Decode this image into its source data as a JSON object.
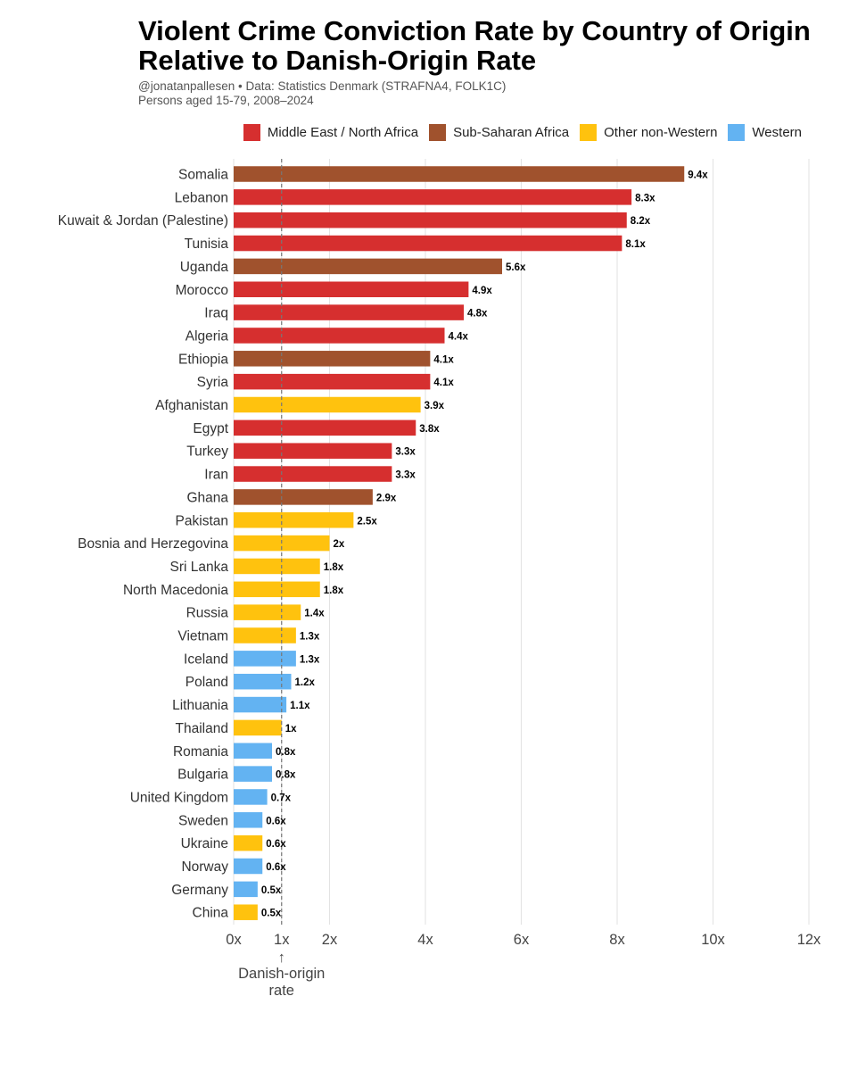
{
  "chart_data": {
    "type": "bar",
    "orientation": "horizontal",
    "title": "Violent Crime Conviction Rate by Country of Origin Relative to Danish-Origin Rate",
    "subtitle": [
      "@jonatanpallesen • Data: Statistics Denmark (STRAFNA4, FOLK1C)",
      "Persons aged 15-79, 2008–2024"
    ],
    "xlabel": "",
    "ylabel": "",
    "xlim": [
      0,
      12
    ],
    "x_ticks": [
      {
        "value": 0,
        "label": "0x"
      },
      {
        "value": 1,
        "label": "1x"
      },
      {
        "value": 2,
        "label": "2x"
      },
      {
        "value": 4,
        "label": "4x"
      },
      {
        "value": 6,
        "label": "6x"
      },
      {
        "value": 8,
        "label": "8x"
      },
      {
        "value": 10,
        "label": "10x"
      },
      {
        "value": 12,
        "label": "12x"
      }
    ],
    "grid": "vertical",
    "legend_position": "top-right",
    "legend": [
      {
        "key": "mena",
        "label": "Middle East / North Africa",
        "color": "#D62F2F"
      },
      {
        "key": "ssa",
        "label": "Sub-Saharan Africa",
        "color": "#A0522D"
      },
      {
        "key": "nonwest",
        "label": "Other non-Western",
        "color": "#FFC20E"
      },
      {
        "key": "west",
        "label": "Western",
        "color": "#63B3F2"
      }
    ],
    "reference_line": {
      "value": 1,
      "arrow": "↑",
      "annotation": [
        "Danish-origin",
        "rate"
      ]
    },
    "bars": [
      {
        "category": "Somalia",
        "value": 9.4,
        "label": "9.4x",
        "group": "ssa"
      },
      {
        "category": "Lebanon",
        "value": 8.3,
        "label": "8.3x",
        "group": "mena"
      },
      {
        "category": "Kuwait & Jordan (Palestine)",
        "value": 8.2,
        "label": "8.2x",
        "group": "mena"
      },
      {
        "category": "Tunisia",
        "value": 8.1,
        "label": "8.1x",
        "group": "mena"
      },
      {
        "category": "Uganda",
        "value": 5.6,
        "label": "5.6x",
        "group": "ssa"
      },
      {
        "category": "Morocco",
        "value": 4.9,
        "label": "4.9x",
        "group": "mena"
      },
      {
        "category": "Iraq",
        "value": 4.8,
        "label": "4.8x",
        "group": "mena"
      },
      {
        "category": "Algeria",
        "value": 4.4,
        "label": "4.4x",
        "group": "mena"
      },
      {
        "category": "Ethiopia",
        "value": 4.1,
        "label": "4.1x",
        "group": "ssa"
      },
      {
        "category": "Syria",
        "value": 4.1,
        "label": "4.1x",
        "group": "mena"
      },
      {
        "category": "Afghanistan",
        "value": 3.9,
        "label": "3.9x",
        "group": "nonwest"
      },
      {
        "category": "Egypt",
        "value": 3.8,
        "label": "3.8x",
        "group": "mena"
      },
      {
        "category": "Turkey",
        "value": 3.3,
        "label": "3.3x",
        "group": "mena"
      },
      {
        "category": "Iran",
        "value": 3.3,
        "label": "3.3x",
        "group": "mena"
      },
      {
        "category": "Ghana",
        "value": 2.9,
        "label": "2.9x",
        "group": "ssa"
      },
      {
        "category": "Pakistan",
        "value": 2.5,
        "label": "2.5x",
        "group": "nonwest"
      },
      {
        "category": "Bosnia and Herzegovina",
        "value": 2.0,
        "label": "2x",
        "group": "nonwest"
      },
      {
        "category": "Sri Lanka",
        "value": 1.8,
        "label": "1.8x",
        "group": "nonwest"
      },
      {
        "category": "North Macedonia",
        "value": 1.8,
        "label": "1.8x",
        "group": "nonwest"
      },
      {
        "category": "Russia",
        "value": 1.4,
        "label": "1.4x",
        "group": "nonwest"
      },
      {
        "category": "Vietnam",
        "value": 1.3,
        "label": "1.3x",
        "group": "nonwest"
      },
      {
        "category": "Iceland",
        "value": 1.3,
        "label": "1.3x",
        "group": "west"
      },
      {
        "category": "Poland",
        "value": 1.2,
        "label": "1.2x",
        "group": "west"
      },
      {
        "category": "Lithuania",
        "value": 1.1,
        "label": "1.1x",
        "group": "west"
      },
      {
        "category": "Thailand",
        "value": 1.0,
        "label": "1x",
        "group": "nonwest"
      },
      {
        "category": "Romania",
        "value": 0.8,
        "label": "0.8x",
        "group": "west"
      },
      {
        "category": "Bulgaria",
        "value": 0.8,
        "label": "0.8x",
        "group": "west"
      },
      {
        "category": "United Kingdom",
        "value": 0.7,
        "label": "0.7x",
        "group": "west"
      },
      {
        "category": "Sweden",
        "value": 0.6,
        "label": "0.6x",
        "group": "west"
      },
      {
        "category": "Ukraine",
        "value": 0.6,
        "label": "0.6x",
        "group": "nonwest"
      },
      {
        "category": "Norway",
        "value": 0.6,
        "label": "0.6x",
        "group": "west"
      },
      {
        "category": "Germany",
        "value": 0.5,
        "label": "0.5x",
        "group": "west"
      },
      {
        "category": "China",
        "value": 0.5,
        "label": "0.5x",
        "group": "nonwest"
      }
    ]
  }
}
